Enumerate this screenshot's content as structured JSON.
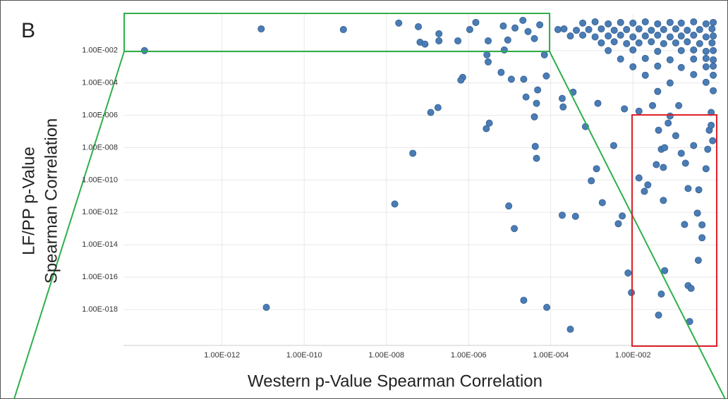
{
  "chart_data": {
    "type": "scatter",
    "panel_label": "B",
    "xlabel": "Western p-Value Spearman Correlation",
    "ylabel": [
      "LF/PP p-Value",
      "Spearman Correlation"
    ],
    "xscale": "log",
    "yscale": "log",
    "grid": true,
    "color": "#4a7cb5",
    "xlim": [
      4e-15,
      1.28
    ],
    "ylim": [
      6e-21,
      1.8
    ],
    "xticks": [
      {
        "value": 1e-12,
        "label": "1.00E-012"
      },
      {
        "value": 1e-10,
        "label": "1.00E-010"
      },
      {
        "value": 1e-08,
        "label": "1.00E-008"
      },
      {
        "value": 1e-06,
        "label": "1.00E-006"
      },
      {
        "value": 0.0001,
        "label": "1.00E-004"
      },
      {
        "value": 0.01,
        "label": "1.00E-002"
      }
    ],
    "yticks": [
      {
        "value": 0.01,
        "label": "1.00E-002"
      },
      {
        "value": 0.0001,
        "label": "1.00E-004"
      },
      {
        "value": 1e-06,
        "label": "1.00E-006"
      },
      {
        "value": 1e-08,
        "label": "1.00E-008"
      },
      {
        "value": 1e-10,
        "label": "1.00E-010"
      },
      {
        "value": 1e-12,
        "label": "1.00E-012"
      },
      {
        "value": 1e-14,
        "label": "1.00E-014"
      },
      {
        "value": 1e-16,
        "label": "1.00E-016"
      },
      {
        "value": 1e-18,
        "label": "1.00E-018"
      }
    ],
    "x": [
      1.3e-14,
      9e-12,
      9e-10,
      2e-08,
      6e-08,
      6.6e-08,
      8.7e-08,
      1.9e-07,
      1.9e-07,
      5.5e-07,
      1.07e-06,
      1.5e-06,
      3e-06,
      2.8e-06,
      3e-06,
      7e-06,
      7.4e-06,
      9e-06,
      1.35e-05,
      2.1e-05,
      2.8e-05,
      4e-05,
      5.4e-05,
      7e-05,
      7.8e-05,
      7.2e-07,
      6.5e-07,
      6.2e-06,
      1.1e-05,
      2.2e-05,
      2.5e-05,
      4.8e-05,
      4.5e-05,
      4e-05,
      4.2e-05,
      4.5e-05,
      0.0002,
      0.00019,
      0.00035,
      0.0007,
      0.0014,
      0.0034,
      0.0013,
      0.00097,
      0.0018,
      1.2e-07,
      1.8e-07,
      3.2e-06,
      2.7e-06,
      4.4e-08,
      1.6e-08,
      9.5e-06,
      1.3e-05,
      0.00019,
      0.0004,
      0.0055,
      0.0044,
      0.0076,
      0.0092,
      2.2e-05,
      8e-05,
      0.0003,
      1.2e-11,
      0.014,
      0.019,
      0.023,
      0.055,
      0.042,
      0.049,
      0.059,
      0.037,
      0.055,
      0.072,
      0.11,
      0.15,
      0.19,
      0.22,
      0.4,
      0.37,
      0.48,
      0.18,
      0.39,
      0.48,
      0.059,
      0.049,
      0.042,
      0.22,
      0.26,
      0.24,
      0.72,
      0.8,
      0.66,
      0.87,
      0.3,
      0.6,
      0.8,
      0.014,
      0.0062,
      0.03,
      0.08,
      0.13,
      0.0006,
      0.0012,
      0.0025,
      0.005,
      0.01,
      0.02,
      0.04,
      0.08,
      0.15,
      0.3,
      0.6,
      0.9,
      0.00015,
      0.00021,
      0.00042,
      0.00084,
      0.0017,
      0.0035,
      0.007,
      0.014,
      0.028,
      0.056,
      0.11,
      0.21,
      0.42,
      0.84,
      0.0003,
      0.0006,
      0.0012,
      0.0025,
      0.005,
      0.01,
      0.02,
      0.04,
      0.08,
      0.15,
      0.3,
      0.6,
      0.9,
      0.0017,
      0.0035,
      0.007,
      0.014,
      0.028,
      0.056,
      0.11,
      0.21,
      0.42,
      0.84,
      0.0025,
      0.01,
      0.04,
      0.15,
      0.3,
      0.6,
      0.9,
      0.005,
      0.02,
      0.08,
      0.3,
      0.6,
      0.9,
      0.01,
      0.04,
      0.15,
      0.6,
      0.9,
      0.02,
      0.3,
      0.9,
      0.08,
      0.6,
      0.04,
      0.9
    ],
    "values": [
      0.01,
      0.22,
      0.2,
      0.5,
      0.3,
      0.033,
      0.025,
      0.11,
      0.04,
      0.04,
      0.2,
      0.55,
      0.04,
      0.0055,
      0.002,
      0.33,
      0.011,
      0.045,
      0.25,
      0.74,
      0.15,
      0.055,
      0.39,
      0.0055,
      0.00027,
      0.00022,
      0.00015,
      0.00045,
      0.00017,
      0.00017,
      1.35e-05,
      3.7e-05,
      5.5e-06,
      8e-07,
      1.2e-08,
      2.2e-09,
      3.3e-06,
      1.1e-05,
      2.7e-05,
      2e-07,
      5.5e-06,
      1.35e-08,
      5e-10,
      9e-11,
      4e-12,
      1.5e-06,
      3e-06,
      3.3e-07,
      1.5e-07,
      4.5e-09,
      3.3e-12,
      2.5e-12,
      1e-13,
      6.7e-13,
      5.7e-13,
      6e-13,
      2e-13,
      1.8e-16,
      1.1e-17,
      3.7e-18,
      1.35e-18,
      6e-20,
      1.35e-18,
      1.35e-10,
      2e-11,
      5e-11,
      5.5e-12,
      1.2e-07,
      8e-09,
      1e-08,
      9e-10,
      6e-10,
      3.3e-07,
      5.5e-08,
      4.5e-09,
      1.1e-09,
      3e-11,
      2.5e-11,
      9e-13,
      1.7e-13,
      1.8e-13,
      1.1e-15,
      2.7e-14,
      2.5e-16,
      9e-18,
      4.5e-19,
      3e-17,
      2e-17,
      1.8e-19,
      1.2e-07,
      1.5e-06,
      8e-09,
      2.7e-08,
      1.35e-08,
      5e-10,
      2.4e-07,
      1.8e-06,
      2.5e-06,
      4e-06,
      9e-07,
      4e-06,
      0.5,
      0.6,
      0.45,
      0.55,
      0.5,
      0.6,
      0.45,
      0.55,
      0.5,
      0.6,
      0.45,
      0.55,
      0.2,
      0.22,
      0.18,
      0.2,
      0.22,
      0.18,
      0.2,
      0.22,
      0.18,
      0.2,
      0.22,
      0.18,
      0.2,
      0.22,
      0.08,
      0.09,
      0.07,
      0.08,
      0.09,
      0.07,
      0.08,
      0.09,
      0.07,
      0.08,
      0.09,
      0.07,
      0.08,
      0.03,
      0.035,
      0.027,
      0.03,
      0.035,
      0.027,
      0.03,
      0.035,
      0.027,
      0.03,
      0.01,
      0.011,
      0.009,
      0.01,
      0.011,
      0.009,
      0.01,
      0.003,
      0.0033,
      0.0027,
      0.003,
      0.0033,
      0.0027,
      0.001,
      0.0011,
      0.0009,
      0.001,
      0.0011,
      0.0003,
      0.00033,
      0.0003,
      0.0001,
      0.00011,
      3e-05,
      3.3e-05
    ]
  }
}
